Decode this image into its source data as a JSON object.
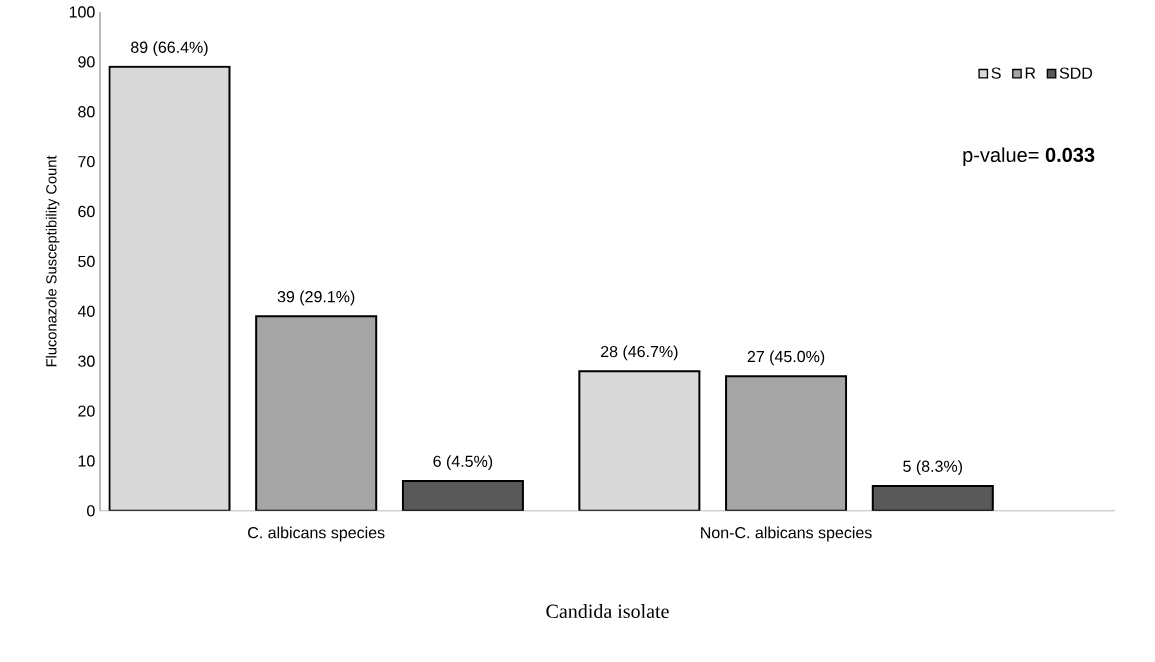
{
  "chart_data": {
    "type": "bar",
    "xlabel": "Candida isolate",
    "ylabel": "Fluconazole Susceptibility Count",
    "categories": [
      "C. albicans species",
      "Non-C. albicans species"
    ],
    "series": [
      {
        "name": "S",
        "color": "#d9d9d9",
        "values": [
          89,
          28
        ],
        "value_labels": [
          "89 (66.4%)",
          "28 (46.7%)"
        ]
      },
      {
        "name": "R",
        "color": "#a6a6a6",
        "values": [
          39,
          27
        ],
        "value_labels": [
          "39 (29.1%)",
          "27 (45.0%)"
        ]
      },
      {
        "name": "SDD",
        "color": "#595959",
        "values": [
          6,
          5
        ],
        "value_labels": [
          "6 (4.5%)",
          "5 (8.3%)"
        ]
      }
    ],
    "ylim": [
      0,
      100
    ],
    "yticks": [
      0,
      10,
      20,
      30,
      40,
      50,
      60,
      70,
      80,
      90,
      100
    ],
    "grid": false,
    "legend": "top right",
    "annotations": [
      "p-value= **0.033**"
    ]
  }
}
